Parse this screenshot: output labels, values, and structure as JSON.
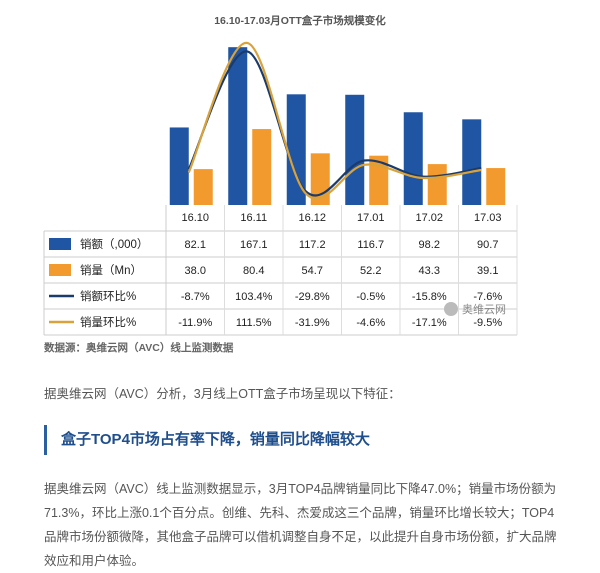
{
  "chart_data": {
    "type": "bar",
    "title": "16.10-17.03月OTT盒子市场规模变化",
    "categories": [
      "16.10",
      "16.11",
      "16.12",
      "17.01",
      "17.02",
      "17.03"
    ],
    "series": [
      {
        "name": "销额（,000）",
        "kind": "bar",
        "color": "#1f55a3",
        "values": [
          82.1,
          167.1,
          117.2,
          116.7,
          98.2,
          90.7
        ],
        "labels": [
          "82.1",
          "167.1",
          "117.2",
          "116.7",
          "98.2",
          "90.7"
        ]
      },
      {
        "name": "销量（Mn）",
        "kind": "bar",
        "color": "#f29a2e",
        "values": [
          38.0,
          80.4,
          54.7,
          52.2,
          43.3,
          39.1
        ],
        "labels": [
          "38.0",
          "80.4",
          "54.7",
          "52.2",
          "43.3",
          "39.1"
        ]
      },
      {
        "name": "销额环比%",
        "kind": "line",
        "color": "#1b3b6b",
        "values": [
          -8.7,
          103.4,
          -29.8,
          -0.5,
          -15.8,
          -7.6
        ],
        "labels": [
          "-8.7%",
          "103.4%",
          "-29.8%",
          "-0.5%",
          "-15.8%",
          "-7.6%"
        ]
      },
      {
        "name": "销量环比%",
        "kind": "line",
        "color": "#d9a23a",
        "values": [
          -11.9,
          111.5,
          -31.9,
          -4.6,
          -17.1,
          -9.5
        ],
        "labels": [
          "-11.9%",
          "111.5%",
          "-31.9%",
          "-4.6%",
          "-17.1%",
          "-9.5%"
        ]
      }
    ],
    "grid": false,
    "legend": "table-below"
  },
  "source": "数据源：奥维云网（AVC）线上监测数据",
  "watermark": "奥维云网",
  "intro": "据奥维云网（AVC）分析，3月线上OTT盒子市场呈现以下特征：",
  "heading": "盒子TOP4市场占有率下降，销量同比降幅较大",
  "body": "据奥维云网（AVC）线上监测数据显示，3月TOP4品牌销量同比下降47.0%；销量市场份额为71.3%，环比上涨0.1个百分点。创维、先科、杰爱成这三个品牌，销量环比增长较大；TOP4品牌市场份额微降，其他盒子品牌可以借机调整自身不足，以此提升自身市场份额，扩大品牌效应和用户体验。"
}
